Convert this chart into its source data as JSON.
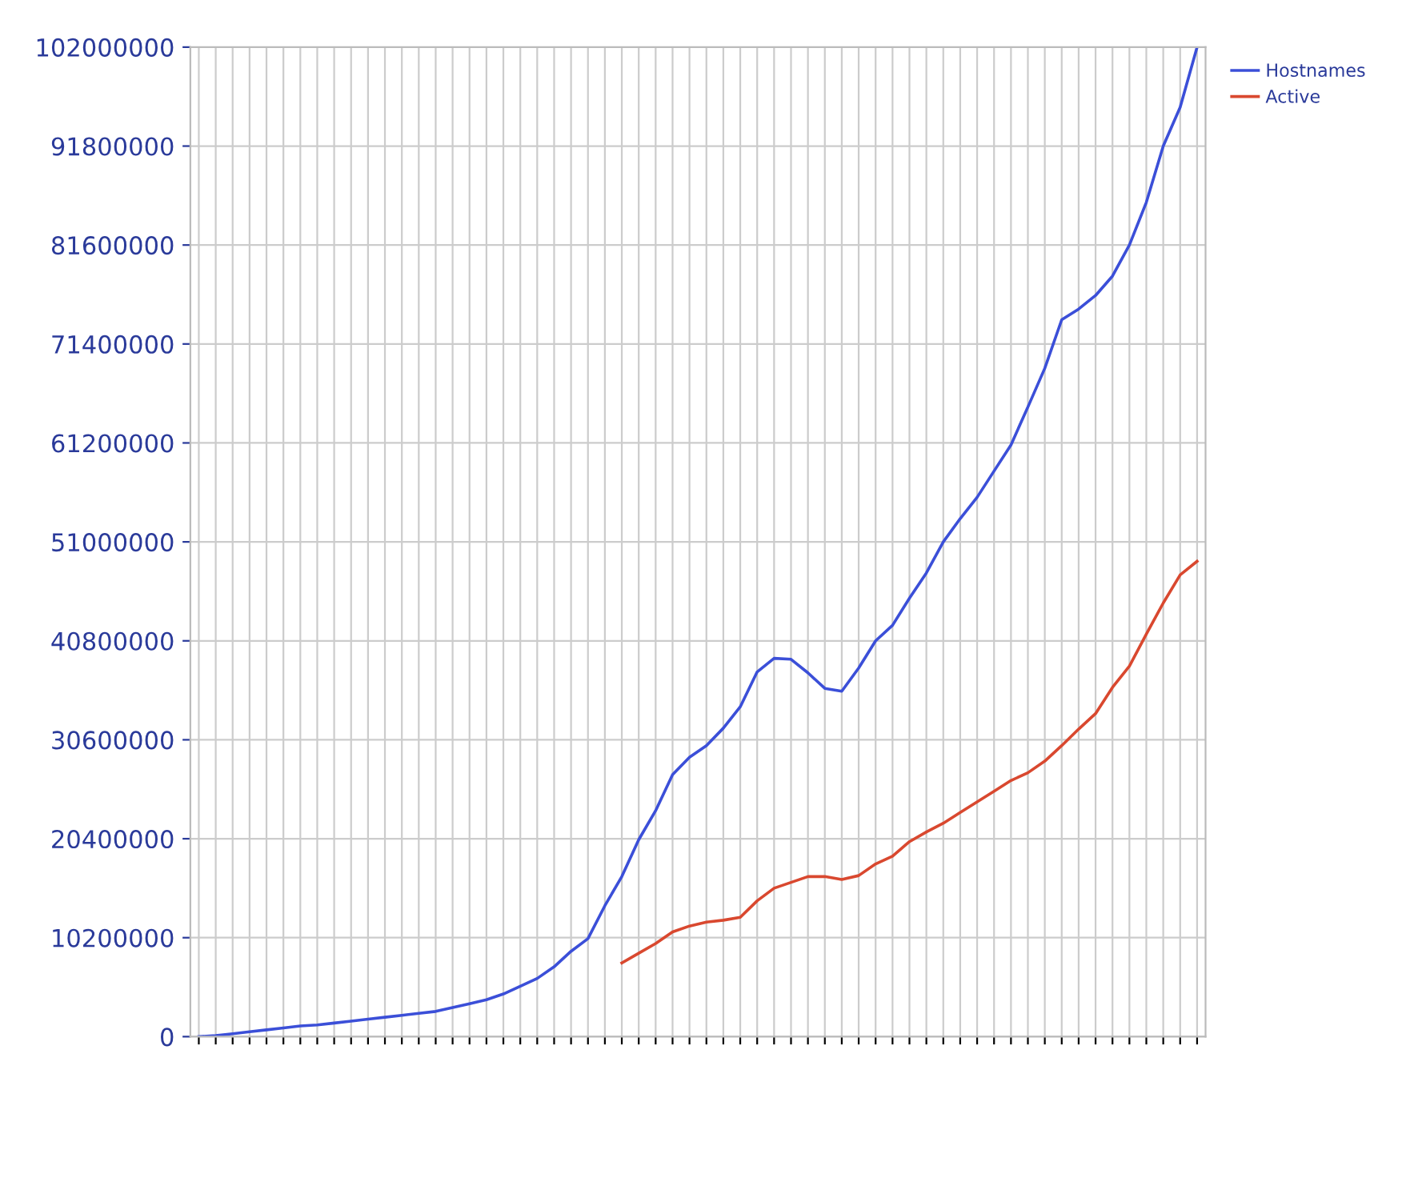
{
  "chart_data": {
    "type": "line",
    "categories": [
      null,
      null,
      null,
      null,
      null,
      null,
      null,
      null,
      null,
      null,
      null,
      null,
      null,
      null,
      null,
      null,
      null,
      null,
      null,
      null,
      null,
      null,
      null,
      null,
      null,
      null,
      null,
      null,
      null,
      null,
      null,
      null,
      null,
      null,
      null,
      null,
      null,
      null,
      null,
      null,
      null,
      null,
      null,
      null,
      null,
      null,
      null,
      null,
      null,
      null,
      null,
      null,
      null,
      null,
      null,
      null,
      null,
      null,
      null,
      null
    ],
    "series": [
      {
        "name": "Hostnames",
        "color": "#3b4fd8",
        "values": [
          0,
          100000,
          300000,
          500000,
          700000,
          900000,
          1100000,
          1200000,
          1400000,
          1600000,
          1800000,
          2000000,
          2200000,
          2400000,
          2600000,
          3000000,
          3400000,
          3800000,
          4400000,
          5200000,
          6000000,
          7200000,
          8800000,
          10100000,
          13500000,
          16500000,
          20300000,
          23300000,
          27000000,
          28800000,
          30000000,
          31800000,
          34000000,
          37600000,
          39000000,
          38900000,
          37500000,
          35900000,
          35600000,
          38000000,
          40800000,
          42400000,
          45200000,
          47800000,
          51000000,
          53400000,
          55600000,
          58300000,
          61000000,
          64900000,
          68900000,
          73900000,
          75000000,
          76400000,
          78400000,
          81600000,
          86000000,
          91800000,
          95800000,
          102000000
        ]
      },
      {
        "name": "Active",
        "color": "#d9482f",
        "values": [
          null,
          null,
          null,
          null,
          null,
          null,
          null,
          null,
          null,
          null,
          null,
          null,
          null,
          null,
          null,
          null,
          null,
          null,
          null,
          null,
          null,
          null,
          null,
          null,
          null,
          7600000,
          8600000,
          9600000,
          10800000,
          11400000,
          11800000,
          12000000,
          12300000,
          14000000,
          15300000,
          15900000,
          16500000,
          16500000,
          16200000,
          16600000,
          17800000,
          18600000,
          20100000,
          21100000,
          22000000,
          23100000,
          24200000,
          25300000,
          26400000,
          27200000,
          28400000,
          30000000,
          31700000,
          33300000,
          36000000,
          38200000,
          41500000,
          44700000,
          47600000,
          49000000
        ]
      }
    ],
    "ylim": [
      0,
      102000000
    ],
    "yticks": [
      0,
      10200000,
      20400000,
      30600000,
      40800000,
      51000000,
      61200000,
      71400000,
      81600000,
      91800000,
      102000000
    ],
    "grid": true,
    "legend": "top right",
    "tick_labels": "y"
  }
}
